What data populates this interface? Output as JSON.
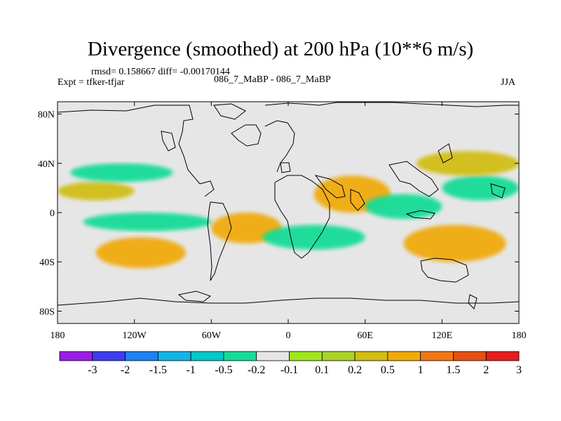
{
  "title": "Divergence (smoothed) at 200 hPa (10**6 m/s)",
  "stats": "rmsd= 0.158667 diff= -0.00170144",
  "experiment": "Expt = tfker-tfjar",
  "comparison": "086_7_MaBP - 086_7_MaBP",
  "season": "JJA",
  "colors": {
    "background": "#e6e6e6",
    "coast": "#000000",
    "palette": [
      "#9a1ee6",
      "#3c3cf0",
      "#1e82f0",
      "#13b4e6",
      "#00c8c8",
      "#14dc96",
      "#e6e6e6",
      "#a0e61e",
      "#aad228",
      "#d2be14",
      "#f0aa0a",
      "#f07814",
      "#e65014",
      "#e61e1e"
    ]
  },
  "chart_data": {
    "type": "heatmap",
    "projection": "cylindrical equidistant",
    "x_ticks": [
      "180",
      "120W",
      "60W",
      "0",
      "60E",
      "120E",
      "180"
    ],
    "x_tick_values": [
      -180,
      -120,
      -60,
      0,
      60,
      120,
      180
    ],
    "y_ticks": [
      "80N",
      "40N",
      "0",
      "40S",
      "80S"
    ],
    "y_tick_values": [
      80,
      40,
      0,
      -40,
      -80
    ],
    "xlim": [
      -180,
      180
    ],
    "ylim": [
      -90,
      90
    ],
    "colorbar_labels": [
      "-3",
      "-2",
      "-1.5",
      "-1",
      "-0.5",
      "-0.2",
      "-0.1",
      "0.1",
      "0.2",
      "0.5",
      "1",
      "1.5",
      "2",
      "3"
    ],
    "colorbar_levels": [
      -3,
      -2,
      -1.5,
      -1,
      -0.5,
      -0.2,
      -0.1,
      0.1,
      0.2,
      0.5,
      1,
      1.5,
      2,
      3
    ],
    "features": [
      {
        "sign": "positive",
        "level": 0.2,
        "lon": [
          -180,
          -120
        ],
        "lat": [
          10,
          25
        ]
      },
      {
        "sign": "negative",
        "level": -0.5,
        "lon": [
          -170,
          -90
        ],
        "lat": [
          25,
          40
        ]
      },
      {
        "sign": "negative",
        "level": -0.5,
        "lon": [
          -160,
          -60
        ],
        "lat": [
          -15,
          0
        ]
      },
      {
        "sign": "positive",
        "level": 0.5,
        "lon": [
          -150,
          -80
        ],
        "lat": [
          -45,
          -20
        ]
      },
      {
        "sign": "positive",
        "level": 0.5,
        "lon": [
          -60,
          -5
        ],
        "lat": [
          -25,
          0
        ]
      },
      {
        "sign": "negative",
        "level": -0.5,
        "lon": [
          -20,
          60
        ],
        "lat": [
          -30,
          -10
        ]
      },
      {
        "sign": "positive",
        "level": 0.5,
        "lon": [
          20,
          80
        ],
        "lat": [
          0,
          30
        ]
      },
      {
        "sign": "negative",
        "level": -0.5,
        "lon": [
          60,
          120
        ],
        "lat": [
          -5,
          15
        ]
      },
      {
        "sign": "positive",
        "level": 0.5,
        "lon": [
          90,
          170
        ],
        "lat": [
          -40,
          -10
        ]
      },
      {
        "sign": "negative",
        "level": -0.5,
        "lon": [
          120,
          180
        ],
        "lat": [
          10,
          30
        ]
      },
      {
        "sign": "positive",
        "level": 0.2,
        "lon": [
          100,
          180
        ],
        "lat": [
          30,
          50
        ]
      }
    ]
  }
}
